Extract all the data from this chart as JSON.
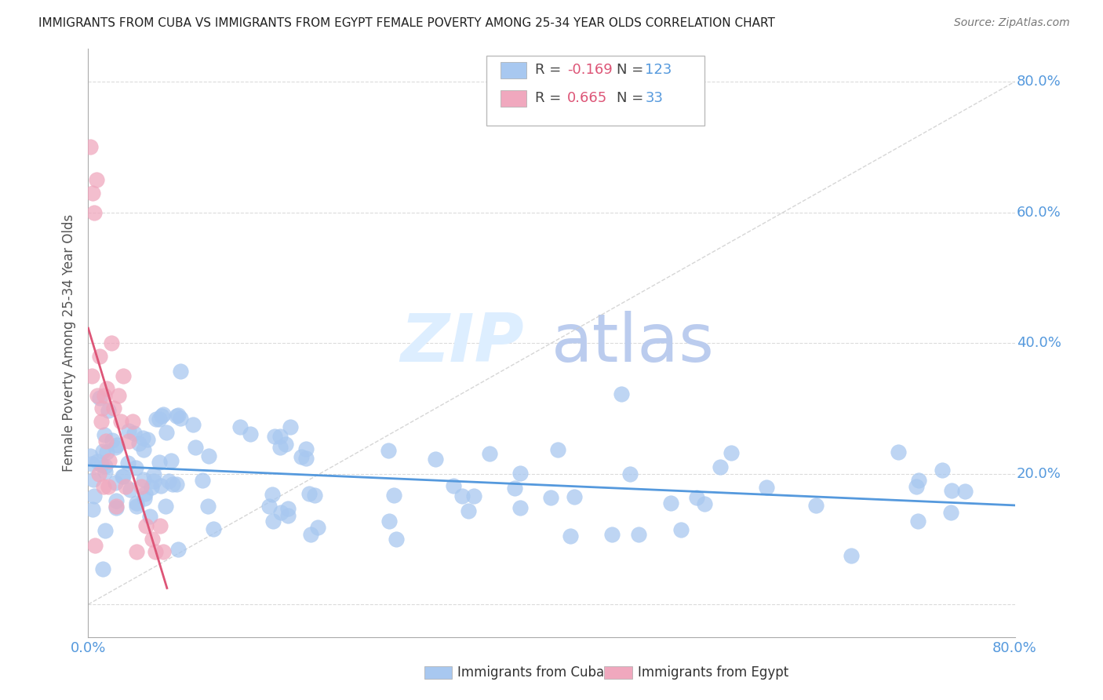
{
  "title": "IMMIGRANTS FROM CUBA VS IMMIGRANTS FROM EGYPT FEMALE POVERTY AMONG 25-34 YEAR OLDS CORRELATION CHART",
  "source": "Source: ZipAtlas.com",
  "ylabel": "Female Poverty Among 25-34 Year Olds",
  "legend_cuba": "Immigrants from Cuba",
  "legend_egypt": "Immigrants from Egypt",
  "R_cuba": -0.169,
  "N_cuba": 123,
  "R_egypt": 0.665,
  "N_egypt": 33,
  "color_cuba": "#a8c8f0",
  "color_egypt": "#f0a8be",
  "color_cuba_line": "#5599dd",
  "color_egypt_line": "#dd5577",
  "color_axis_label": "#5599dd",
  "watermark_zip": "ZIP",
  "watermark_atlas": "atlas",
  "watermark_color_zip": "#ccddee",
  "watermark_color_atlas": "#aabbdd",
  "xlim": [
    0.0,
    0.8
  ],
  "ylim": [
    -0.05,
    0.85
  ],
  "x_ticks": [
    0.0,
    0.1,
    0.2,
    0.3,
    0.4,
    0.5,
    0.6,
    0.7,
    0.8
  ],
  "y_ticks": [
    0.0,
    0.2,
    0.4,
    0.6,
    0.8
  ],
  "cuba_seed": 42,
  "egypt_seed": 77
}
